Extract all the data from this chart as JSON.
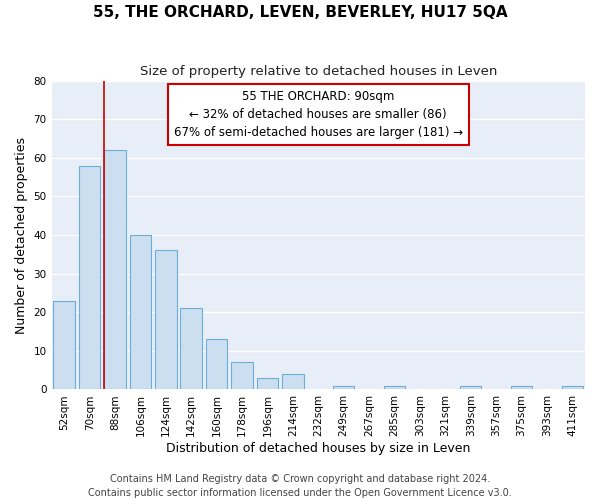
{
  "title": "55, THE ORCHARD, LEVEN, BEVERLEY, HU17 5QA",
  "subtitle": "Size of property relative to detached houses in Leven",
  "xlabel": "Distribution of detached houses by size in Leven",
  "ylabel": "Number of detached properties",
  "bar_labels": [
    "52sqm",
    "70sqm",
    "88sqm",
    "106sqm",
    "124sqm",
    "142sqm",
    "160sqm",
    "178sqm",
    "196sqm",
    "214sqm",
    "232sqm",
    "249sqm",
    "267sqm",
    "285sqm",
    "303sqm",
    "321sqm",
    "339sqm",
    "357sqm",
    "375sqm",
    "393sqm",
    "411sqm"
  ],
  "bar_values": [
    23,
    58,
    62,
    40,
    36,
    21,
    13,
    7,
    3,
    4,
    0,
    1,
    0,
    1,
    0,
    0,
    1,
    0,
    1,
    0,
    1
  ],
  "bar_color": "#ccdff0",
  "bar_edge_color": "#6baed6",
  "ylim": [
    0,
    80
  ],
  "yticks": [
    0,
    10,
    20,
    30,
    40,
    50,
    60,
    70,
    80
  ],
  "property_line_bar_index": 2,
  "property_line_color": "#cc0000",
  "annotation_title": "55 THE ORCHARD: 90sqm",
  "annotation_line1": "← 32% of detached houses are smaller (86)",
  "annotation_line2": "67% of semi-detached houses are larger (181) →",
  "annotation_box_facecolor": "#ffffff",
  "annotation_box_edgecolor": "#cc0000",
  "footer_line1": "Contains HM Land Registry data © Crown copyright and database right 2024.",
  "footer_line2": "Contains public sector information licensed under the Open Government Licence v3.0.",
  "fig_facecolor": "#ffffff",
  "plot_facecolor": "#e8eef8",
  "grid_color": "#ffffff",
  "title_fontsize": 11,
  "subtitle_fontsize": 9.5,
  "axis_label_fontsize": 9,
  "tick_fontsize": 7.5,
  "footer_fontsize": 7,
  "annotation_fontsize": 8.5
}
